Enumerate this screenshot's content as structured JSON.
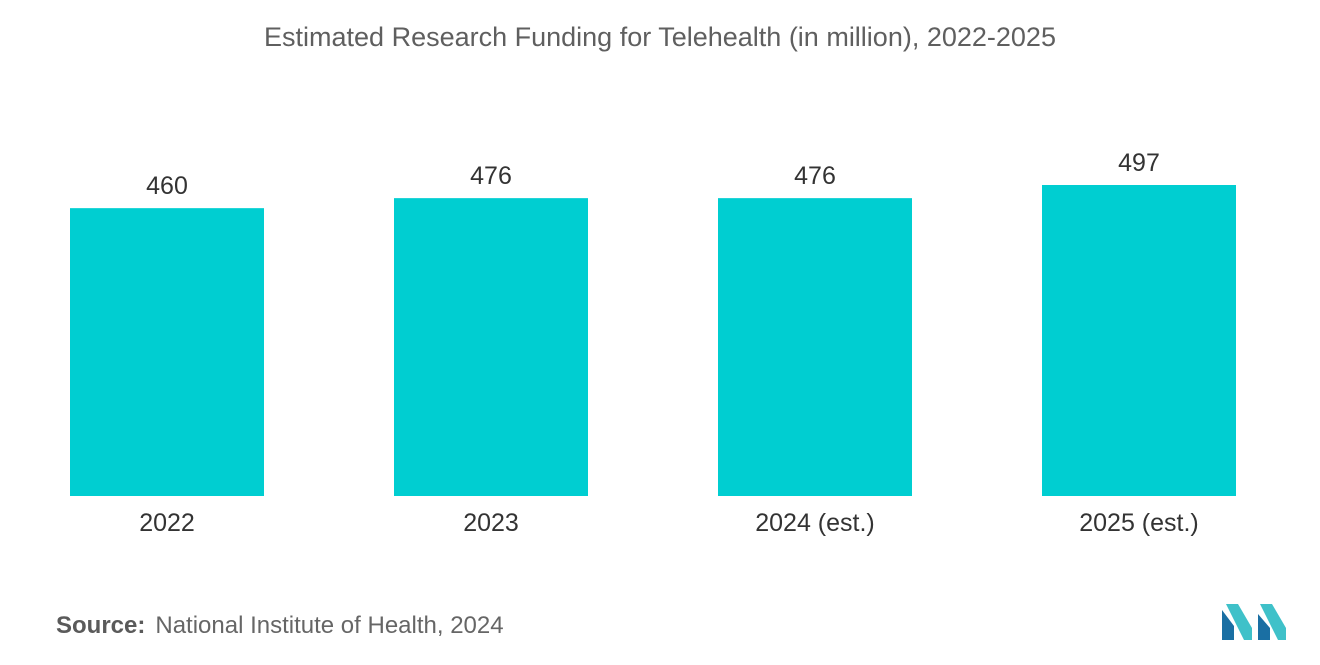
{
  "chart_data": {
    "type": "bar",
    "title": "Estimated Research Funding for Telehealth (in million), 2022-2025",
    "categories": [
      "2022",
      "2023",
      "2024 (est.)",
      "2025 (est.)"
    ],
    "values": [
      460,
      476,
      476,
      497
    ],
    "value_labels": [
      "460",
      "476",
      "476",
      "497"
    ],
    "xlabel": "",
    "ylabel": "",
    "ylim": [
      0,
      497
    ],
    "grid": false,
    "bar_color": "#00ced1"
  },
  "source": {
    "label": "Source:",
    "text": "National Institute of Health, 2024"
  },
  "logo": {
    "icon": "mordor-intelligence-logo-icon",
    "colors": [
      "#1a6fa3",
      "#3fc1c9"
    ]
  }
}
